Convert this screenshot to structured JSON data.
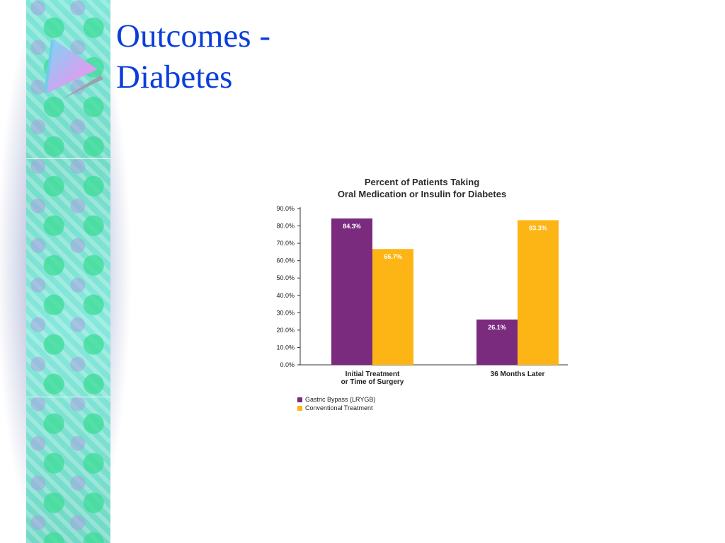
{
  "slide": {
    "title_line1": "Outcomes -",
    "title_line2": "Diabetes"
  },
  "icons": {
    "bullet": "triangle-bullet-icon"
  },
  "colors": {
    "title": "#0a3ddb",
    "series_gastric": "#7a2b7e",
    "series_conventional": "#fdb515"
  },
  "chart_data": {
    "type": "bar",
    "title": "Percent of Patients Taking",
    "subtitle": "Oral Medication or Insulin for Diabetes",
    "categories": [
      [
        "Initial Treatment",
        "or Time of Surgery"
      ],
      [
        "36 Months Later"
      ]
    ],
    "series": [
      {
        "name": "Gastric Bypass (LRYGB)",
        "values": [
          84.3,
          26.1
        ],
        "labels": [
          "84.3%",
          "26.1%"
        ]
      },
      {
        "name": "Conventional Treatment",
        "values": [
          66.7,
          83.3
        ],
        "labels": [
          "66.7%",
          "83.3%"
        ]
      }
    ],
    "ylim": [
      0,
      90
    ],
    "yticks": [
      "0.0%",
      "10.0%",
      "20.0%",
      "30.0%",
      "40.0%",
      "50.0%",
      "60.0%",
      "70.0%",
      "80.0%",
      "90.0%"
    ],
    "grid": false,
    "legend_position": "bottom-left"
  }
}
